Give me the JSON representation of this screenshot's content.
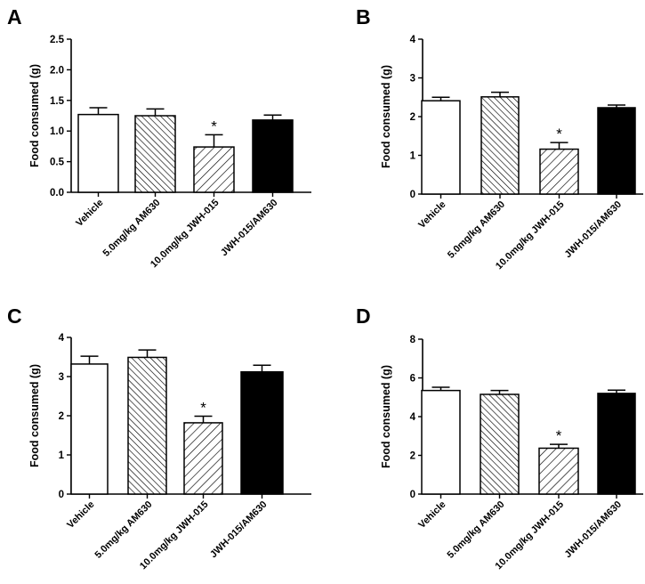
{
  "chart_data": [
    {
      "panel": "A",
      "type": "bar",
      "ylabel": "Food consumed (g)",
      "ylim": [
        0,
        2.5
      ],
      "yticks": [
        0.0,
        0.5,
        1.0,
        1.5,
        2.0,
        2.5
      ],
      "ytick_labels": [
        "0.0",
        "0.5",
        "1.0",
        "1.5",
        "2.0",
        "2.5"
      ],
      "categories": [
        "Vehicle",
        "5.0mg/kg AM630",
        "10.0mg/kg JWH-015",
        "JWH-015/AM630"
      ],
      "values": [
        1.27,
        1.25,
        0.74,
        1.18
      ],
      "errors": [
        0.11,
        0.11,
        0.2,
        0.08
      ],
      "significance": [
        "",
        "",
        "*",
        ""
      ]
    },
    {
      "panel": "B",
      "type": "bar",
      "ylabel": "Food consumed (g)",
      "ylim": [
        0,
        4
      ],
      "yticks": [
        0,
        1,
        2,
        3,
        4
      ],
      "ytick_labels": [
        "0",
        "1",
        "2",
        "3",
        "4"
      ],
      "categories": [
        "Vehicle",
        "5.0mg/kg AM630",
        "10.0mg/kg JWH-015",
        "JWH-015/AM630"
      ],
      "values": [
        2.41,
        2.51,
        1.16,
        2.23
      ],
      "errors": [
        0.09,
        0.12,
        0.17,
        0.07
      ],
      "significance": [
        "",
        "",
        "*",
        ""
      ]
    },
    {
      "panel": "C",
      "type": "bar",
      "ylabel": "Food consumed (g)",
      "ylim": [
        0,
        4
      ],
      "yticks": [
        0,
        1,
        2,
        3,
        4
      ],
      "ytick_labels": [
        "0",
        "1",
        "2",
        "3",
        "4"
      ],
      "categories": [
        "Vehicle",
        "5.0mg/kg AM630",
        "10.0mg/kg JWH-015",
        "JWH-015/AM630"
      ],
      "values": [
        3.32,
        3.49,
        1.82,
        3.12
      ],
      "errors": [
        0.2,
        0.19,
        0.17,
        0.17
      ],
      "significance": [
        "",
        "",
        "*",
        ""
      ]
    },
    {
      "panel": "D",
      "type": "bar",
      "ylabel": "Food consumed (g)",
      "ylim": [
        0,
        8
      ],
      "yticks": [
        0,
        2,
        4,
        6,
        8
      ],
      "ytick_labels": [
        "0",
        "2",
        "4",
        "6",
        "8"
      ],
      "categories": [
        "Vehicle",
        "5.0mg/kg AM630",
        "10.0mg/kg JWH-015",
        "JWH-015/AM630"
      ],
      "values": [
        5.35,
        5.15,
        2.37,
        5.2
      ],
      "errors": [
        0.17,
        0.2,
        0.2,
        0.17
      ],
      "significance": [
        "",
        "",
        "*",
        ""
      ]
    }
  ]
}
